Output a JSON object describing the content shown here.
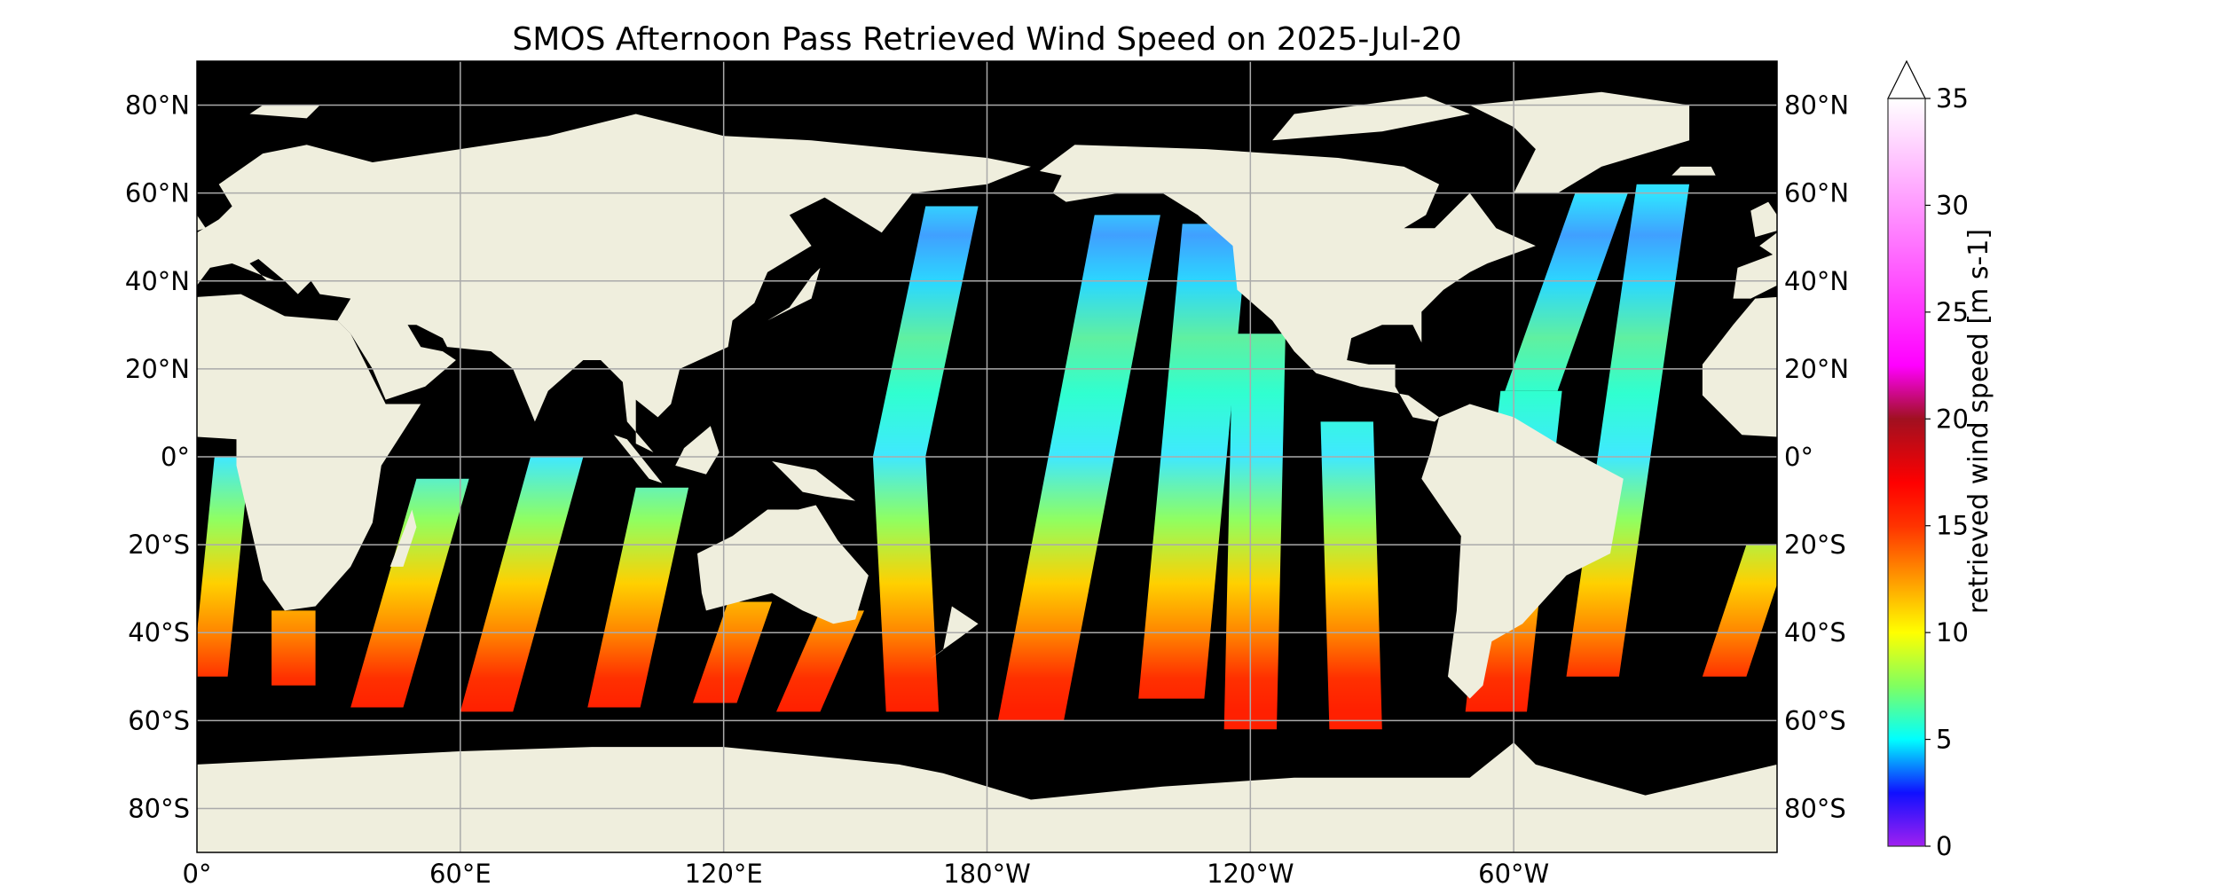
{
  "chart_data": {
    "type": "heatmap",
    "title": "SMOS Afternoon Pass Retrieved Wind Speed on 2025-Jul-20",
    "projection": "equirectangular",
    "lon_range": [
      0,
      360
    ],
    "lat_range": [
      -90,
      90
    ],
    "grid": true,
    "ocean_no_data_color": "#000000",
    "land_color": "#efeedd",
    "x_ticks": [
      {
        "lon": 0,
        "label": "0°"
      },
      {
        "lon": 60,
        "label": "60°E"
      },
      {
        "lon": 120,
        "label": "120°E"
      },
      {
        "lon": 180,
        "label": "180°W"
      },
      {
        "lon": 240,
        "label": "120°W"
      },
      {
        "lon": 300,
        "label": "60°W"
      }
    ],
    "y_ticks": [
      {
        "lat": 80,
        "label": "80°N"
      },
      {
        "lat": 60,
        "label": "60°N"
      },
      {
        "lat": 40,
        "label": "40°N"
      },
      {
        "lat": 20,
        "label": "20°N"
      },
      {
        "lat": 0,
        "label": "0°"
      },
      {
        "lat": -20,
        "label": "20°S"
      },
      {
        "lat": -40,
        "label": "40°S"
      },
      {
        "lat": -60,
        "label": "60°S"
      },
      {
        "lat": -80,
        "label": "80°S"
      }
    ],
    "colorbar": {
      "label": "retrieved wind speed [m s-1]",
      "range": [
        0,
        35
      ],
      "extend": "max",
      "ticks": [
        {
          "value": 0,
          "label": "0"
        },
        {
          "value": 5,
          "label": "5"
        },
        {
          "value": 10,
          "label": "10"
        },
        {
          "value": 15,
          "label": "15"
        },
        {
          "value": 20,
          "label": "20"
        },
        {
          "value": 25,
          "label": "25"
        },
        {
          "value": 30,
          "label": "30"
        },
        {
          "value": 35,
          "label": "35"
        }
      ],
      "colormap": [
        {
          "value": 0,
          "color": "#a020f0"
        },
        {
          "value": 2.5,
          "color": "#1010ff"
        },
        {
          "value": 5,
          "color": "#00ffff"
        },
        {
          "value": 7.5,
          "color": "#80ff60"
        },
        {
          "value": 10,
          "color": "#ffff00"
        },
        {
          "value": 12.5,
          "color": "#ff9900"
        },
        {
          "value": 15,
          "color": "#ff3300"
        },
        {
          "value": 17,
          "color": "#ff0000"
        },
        {
          "value": 20,
          "color": "#a01020"
        },
        {
          "value": 22.5,
          "color": "#ff00ff"
        },
        {
          "value": 27.5,
          "color": "#ff66ff"
        },
        {
          "value": 35,
          "color": "#ffffff"
        }
      ]
    }
  }
}
